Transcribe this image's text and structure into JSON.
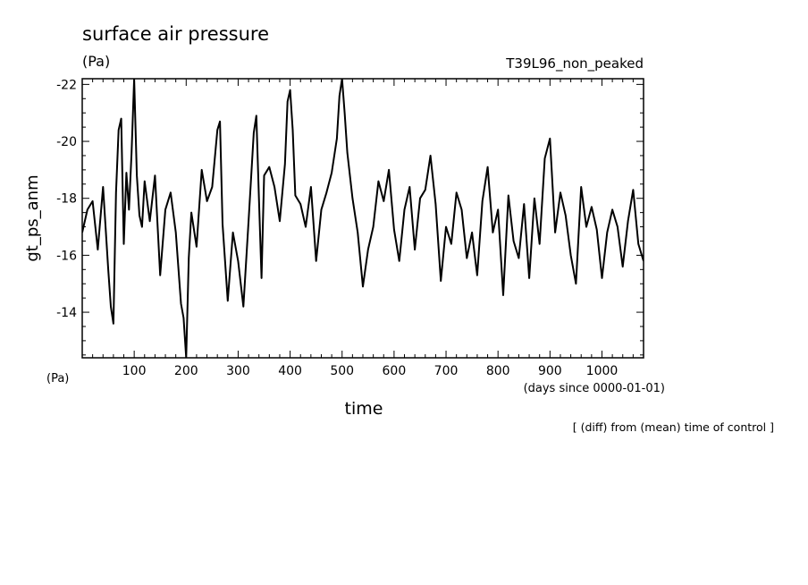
{
  "chart_data": {
    "type": "line",
    "title": "surface air pressure",
    "title_units": "(Pa)",
    "experiment": "T39L96_non_peaked",
    "xlabel": "time",
    "xunits": "(days since 0000-01-01)",
    "ylabel": "gt_ps_anm",
    "yunits": "(Pa)",
    "footnote": "[ (diff) from (mean) time of control ]",
    "xlim": [
      0,
      1080
    ],
    "ylim": [
      -12.4,
      -22.2
    ],
    "y_inverted": true,
    "x_ticks": [
      100,
      200,
      300,
      400,
      500,
      600,
      700,
      800,
      900,
      1000
    ],
    "y_ticks": [
      -14,
      -16,
      -18,
      -20,
      -22
    ],
    "series": [
      {
        "name": "gt_ps_anm",
        "x": [
          0,
          10,
          20,
          30,
          40,
          50,
          55,
          60,
          65,
          70,
          75,
          80,
          85,
          90,
          95,
          100,
          105,
          110,
          115,
          120,
          130,
          140,
          150,
          160,
          170,
          180,
          190,
          195,
          200,
          205,
          210,
          220,
          230,
          240,
          250,
          260,
          265,
          270,
          280,
          290,
          300,
          310,
          320,
          330,
          335,
          340,
          345,
          350,
          360,
          370,
          380,
          390,
          395,
          400,
          405,
          410,
          420,
          430,
          440,
          450,
          460,
          470,
          480,
          490,
          495,
          500,
          505,
          510,
          520,
          530,
          540,
          550,
          560,
          570,
          580,
          590,
          600,
          610,
          620,
          630,
          640,
          650,
          660,
          670,
          680,
          690,
          700,
          710,
          720,
          730,
          740,
          750,
          760,
          770,
          780,
          790,
          800,
          810,
          820,
          830,
          840,
          850,
          860,
          870,
          880,
          890,
          900,
          910,
          920,
          930,
          940,
          950,
          960,
          970,
          980,
          990,
          1000,
          1010,
          1020,
          1030,
          1040,
          1050,
          1060,
          1070,
          1080
        ],
        "values": [
          -16.8,
          -17.6,
          -17.9,
          -16.2,
          -18.4,
          -15.5,
          -14.2,
          -13.6,
          -18.2,
          -20.4,
          -20.8,
          -16.4,
          -18.9,
          -17.6,
          -19.6,
          -22.2,
          -18.8,
          -17.4,
          -17.0,
          -18.6,
          -17.2,
          -18.8,
          -15.3,
          -17.6,
          -18.2,
          -16.8,
          -14.3,
          -13.8,
          -12.4,
          -15.9,
          -17.5,
          -16.3,
          -19.0,
          -17.9,
          -18.4,
          -20.4,
          -20.7,
          -17.1,
          -14.4,
          -16.8,
          -15.8,
          -14.2,
          -17.2,
          -20.3,
          -20.9,
          -18.0,
          -15.2,
          -18.8,
          -19.1,
          -18.4,
          -17.2,
          -19.2,
          -21.4,
          -21.8,
          -20.4,
          -18.1,
          -17.8,
          -17.0,
          -18.4,
          -15.8,
          -17.6,
          -18.2,
          -18.9,
          -20.1,
          -21.6,
          -22.2,
          -21.0,
          -19.6,
          -18.0,
          -16.8,
          -14.9,
          -16.2,
          -17.0,
          -18.6,
          -17.9,
          -19.0,
          -16.9,
          -15.8,
          -17.6,
          -18.4,
          -16.2,
          -18.0,
          -18.3,
          -19.5,
          -17.8,
          -15.1,
          -17.0,
          -16.4,
          -18.2,
          -17.6,
          -15.9,
          -16.8,
          -15.3,
          -17.9,
          -19.1,
          -16.8,
          -17.6,
          -14.6,
          -18.1,
          -16.5,
          -15.9,
          -17.8,
          -15.2,
          -18.0,
          -16.4,
          -19.4,
          -20.1,
          -16.8,
          -18.2,
          -17.4,
          -16.0,
          -15.0,
          -18.4,
          -17.0,
          -17.7,
          -16.9,
          -15.2,
          -16.8,
          -17.6,
          -17.0,
          -15.6,
          -17.2,
          -18.3,
          -16.4,
          -15.8
        ]
      }
    ]
  }
}
